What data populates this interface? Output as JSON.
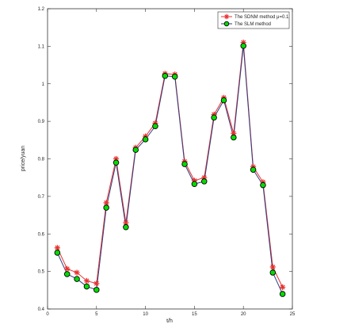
{
  "chart_data": {
    "type": "line",
    "xlabel": "t/h",
    "ylabel": "price/yuan",
    "xlim": [
      0,
      25
    ],
    "ylim": [
      0.4,
      1.2
    ],
    "xticks": [
      0,
      5,
      10,
      15,
      20,
      25
    ],
    "yticks": [
      0.4,
      0.5,
      0.6,
      0.7,
      0.8,
      0.9,
      1,
      1.1,
      1.2
    ],
    "grid": false,
    "legend_position": "top-right",
    "x": [
      1,
      2,
      3,
      4,
      5,
      6,
      7,
      8,
      9,
      10,
      11,
      12,
      13,
      14,
      15,
      16,
      17,
      18,
      19,
      20,
      21,
      22,
      23,
      24
    ],
    "series": [
      {
        "name": "The SDNM method μ=0.1",
        "color": "#e8312f",
        "marker": "asterisk",
        "values": [
          0.563,
          0.507,
          0.497,
          0.475,
          0.468,
          0.683,
          0.8,
          0.63,
          0.83,
          0.86,
          0.895,
          1.027,
          1.025,
          0.793,
          0.742,
          0.75,
          0.918,
          0.963,
          0.868,
          1.11,
          0.779,
          0.738,
          0.512,
          0.458
        ]
      },
      {
        "name": "The SLM method",
        "color": "#2c3e80",
        "marker": "circle",
        "marker_fill": "#00dd00",
        "values": [
          0.55,
          0.493,
          0.48,
          0.46,
          0.451,
          0.67,
          0.79,
          0.618,
          0.824,
          0.852,
          0.887,
          1.021,
          1.019,
          0.786,
          0.733,
          0.74,
          0.91,
          0.956,
          0.857,
          1.101,
          0.771,
          0.73,
          0.497,
          0.44
        ]
      }
    ]
  }
}
